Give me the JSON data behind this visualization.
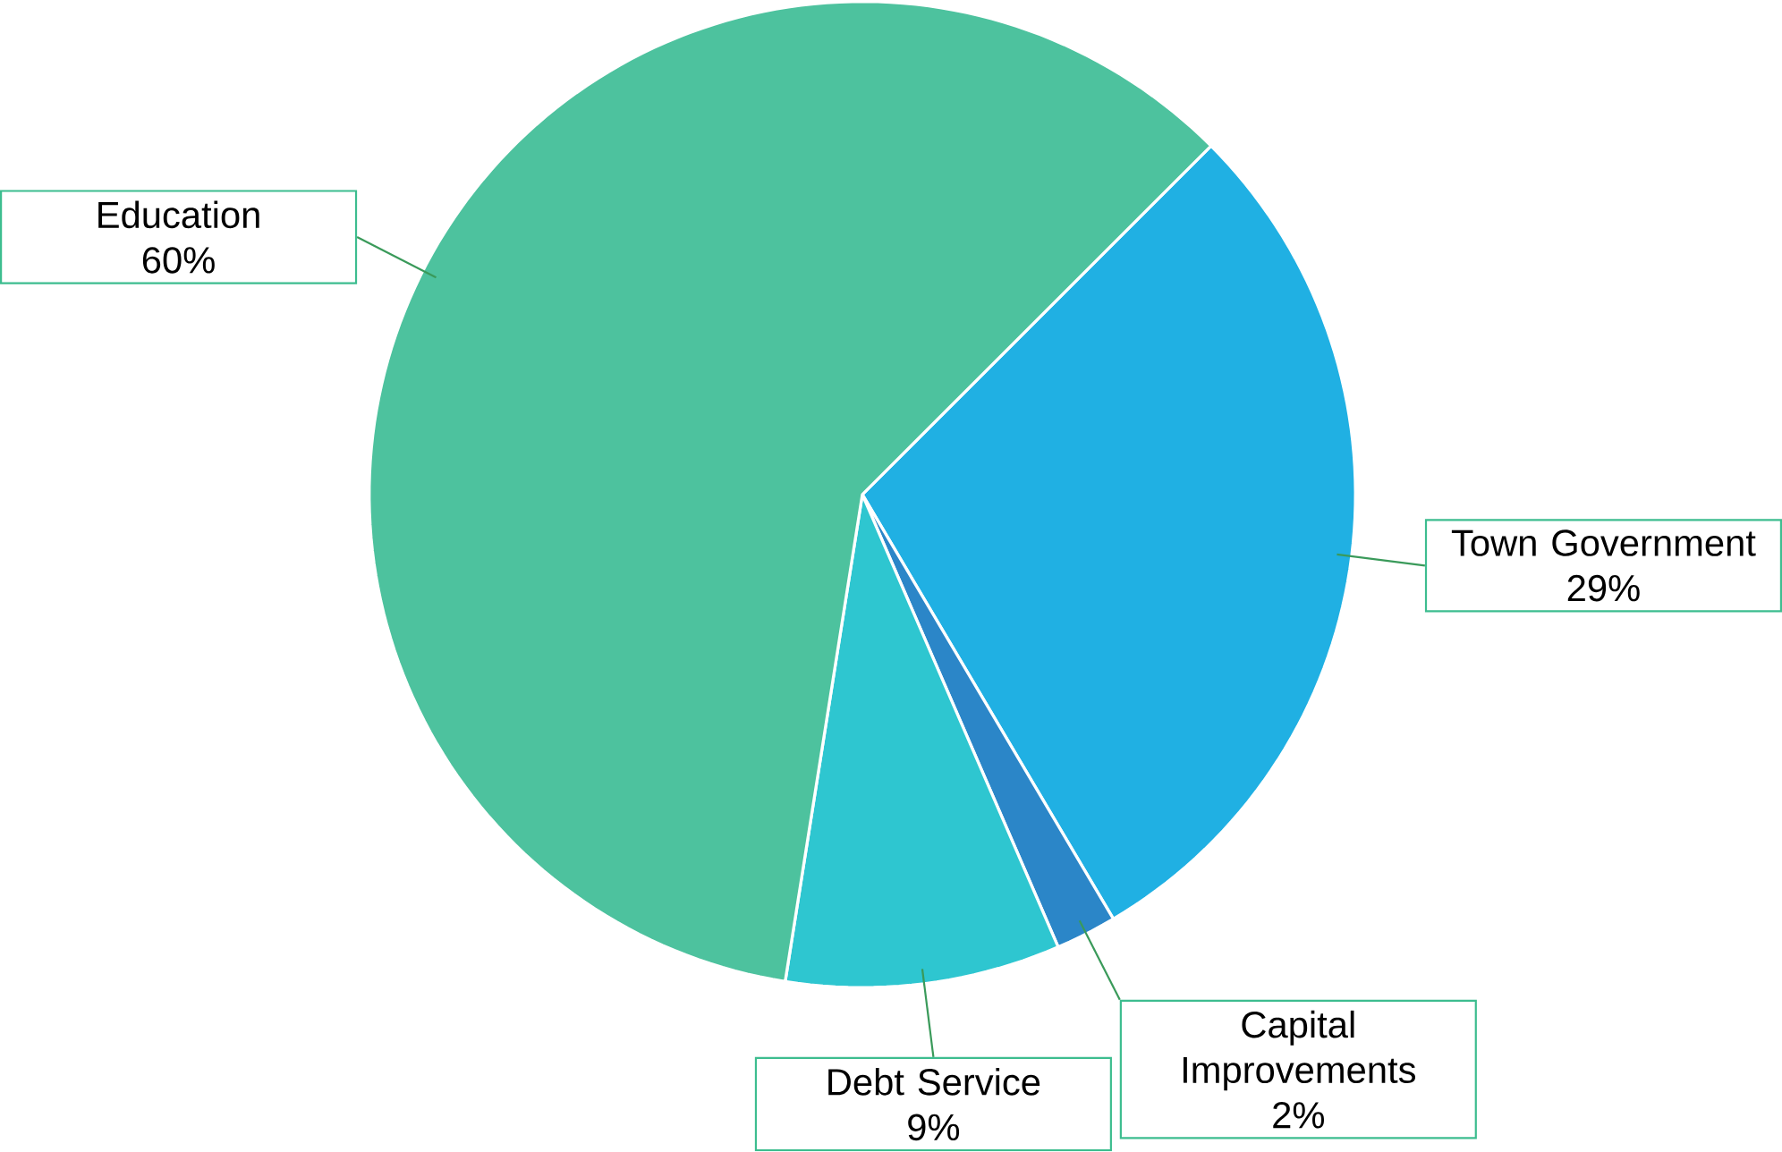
{
  "chart_data": {
    "type": "pie",
    "categories": [
      "Town Government",
      "Capital Improvements",
      "Debt Service",
      "Education"
    ],
    "values": [
      29,
      2,
      9,
      60
    ],
    "value_labels": [
      "29%",
      "2%",
      "9%",
      "60%"
    ],
    "colors": [
      "#20b0e3",
      "#2b86c8",
      "#2ec6d0",
      "#4dc29e"
    ]
  }
}
